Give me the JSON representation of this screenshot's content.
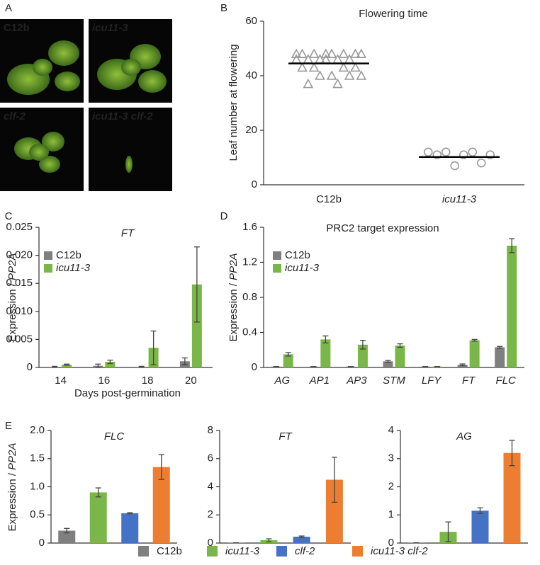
{
  "panel_letters": [
    "A",
    "B",
    "C",
    "D",
    "E"
  ],
  "panel_a": {
    "labels": [
      {
        "text": "C12b",
        "italic": false
      },
      {
        "text": "icu11-3",
        "italic": true
      },
      {
        "text": "clf-2",
        "italic": true
      },
      {
        "text": "icu11-3 clf-2",
        "italic": true
      }
    ]
  },
  "legend_e": [
    {
      "name": "C12b",
      "color": "#7f7f7f",
      "italic": false
    },
    {
      "name": "icu11-3",
      "color": "#7ab648",
      "italic": true
    },
    {
      "name": "clf-2",
      "color": "#4472c4",
      "italic": true
    },
    {
      "name": "icu11-3 clf-2",
      "color": "#ed7d31",
      "italic": true
    }
  ],
  "chart_data": [
    {
      "type": "scatter",
      "title": "Flowering time",
      "y_label": "Leaf number at flowering",
      "categories": [
        "C12b",
        "icu11-3"
      ],
      "categories_italic": [
        false,
        true
      ],
      "series": [
        {
          "marker": "triangle",
          "color": "#999999",
          "mean": 44.5,
          "values": [
            48,
            48,
            48,
            48,
            48,
            48,
            48,
            48,
            46,
            46,
            46,
            46,
            46,
            46,
            43,
            43,
            43,
            43,
            40,
            40,
            40,
            40,
            37,
            37
          ]
        },
        {
          "marker": "circle",
          "color": "#999999",
          "mean": 10.2,
          "values": [
            12,
            12,
            12,
            11,
            11,
            11,
            8,
            7
          ]
        }
      ],
      "ylim": [
        0,
        60
      ],
      "yticks": [
        0,
        20,
        40,
        60
      ]
    },
    {
      "type": "bar",
      "title": "FT",
      "title_italic": true,
      "x_label": "Days post-germination",
      "y_label": "Expression / ",
      "y_label_italic": "PP2A",
      "categories": [
        "14",
        "16",
        "18",
        "20"
      ],
      "categories_italic": false,
      "series": [
        {
          "name": "C12b",
          "italic": false,
          "color": "#7f7f7f",
          "values": [
            0.0001,
            0.0003,
            0.0001,
            0.0011
          ],
          "errors": [
            0.0001,
            0.0003,
            0.0001,
            0.0006
          ]
        },
        {
          "name": "icu11-3",
          "italic": true,
          "color": "#7ab648",
          "values": [
            0.0005,
            0.001,
            0.0035,
            0.0148
          ],
          "errors": [
            0.0001,
            0.0003,
            0.003,
            0.0067
          ]
        }
      ],
      "ylim": [
        0,
        0.025
      ],
      "yticks": [
        0,
        0.005,
        {
          "value": 0.01,
          "label": "0.010"
        },
        0.015,
        {
          "value": 0.02,
          "label": "0.020"
        },
        0.025
      ]
    },
    {
      "type": "bar",
      "title": "PRC2 target expression",
      "title_italic": false,
      "y_label": "Expression / ",
      "y_label_italic": "PP2A",
      "categories": [
        "AG",
        "AP1",
        "AP3",
        "STM",
        "LFY",
        "FT",
        "FLC"
      ],
      "categories_italic": true,
      "series": [
        {
          "name": "C12b",
          "italic": false,
          "color": "#7f7f7f",
          "values": [
            0.01,
            0.01,
            0.01,
            0.07,
            0.01,
            0.03,
            0.23
          ],
          "errors": [
            0,
            0,
            0,
            0.01,
            0,
            0.01,
            0.01
          ]
        },
        {
          "name": "icu11-3",
          "italic": true,
          "color": "#7ab648",
          "values": [
            0.15,
            0.32,
            0.26,
            0.25,
            0.01,
            0.31,
            1.39
          ],
          "errors": [
            0.02,
            0.04,
            0.05,
            0.02,
            0,
            0.01,
            0.08
          ]
        }
      ],
      "ylim": [
        0,
        1.6
      ],
      "yticks": [
        0,
        0.4,
        0.8,
        1.2,
        1.6
      ]
    },
    {
      "type": "bar",
      "title": "FLC",
      "title_italic": true,
      "y_label": "Expression / ",
      "y_label_italic": "PP2A",
      "values": [
        0.22,
        0.9,
        0.53,
        1.35
      ],
      "errors": [
        0.04,
        0.08,
        0.01,
        0.22
      ],
      "ylim": [
        0,
        2
      ],
      "yticks": [
        0,
        0.5,
        {
          "value": 1,
          "label": "1.0"
        },
        1.5,
        {
          "value": 2,
          "label": "2.0"
        }
      ]
    },
    {
      "type": "bar",
      "title": "FT",
      "title_italic": true,
      "values": [
        0.02,
        0.2,
        0.45,
        4.5
      ],
      "errors": [
        0,
        0.1,
        0.05,
        1.6
      ],
      "ylim": [
        0,
        8
      ],
      "yticks": [
        0,
        2,
        4,
        6,
        8
      ]
    },
    {
      "type": "bar",
      "title": "AG",
      "title_italic": true,
      "values": [
        0.01,
        0.4,
        1.15,
        3.2
      ],
      "errors": [
        0,
        0.35,
        0.1,
        0.45
      ],
      "ylim": [
        0,
        4
      ],
      "yticks": [
        0,
        1,
        2,
        3,
        4
      ]
    }
  ]
}
